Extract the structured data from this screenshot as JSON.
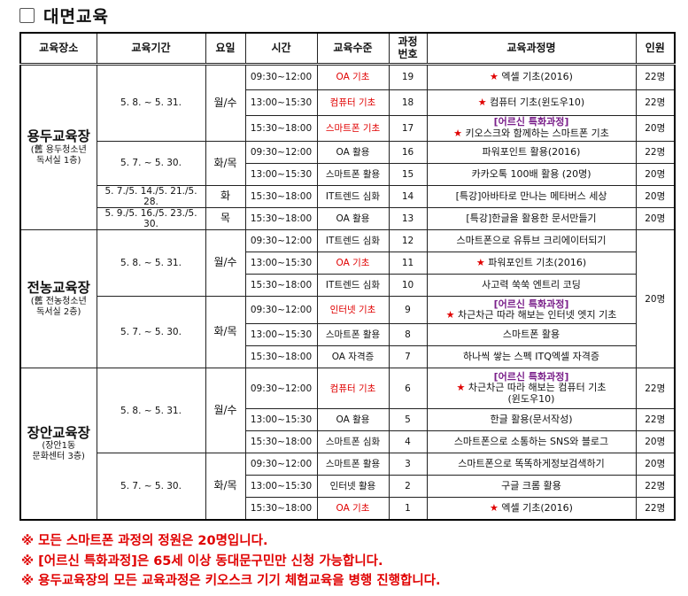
{
  "title": "대면교육",
  "headers": [
    "교육장소",
    "교육기간",
    "요일",
    "시간",
    "교육수준",
    "과정\n번호",
    "교육과정명",
    "인원"
  ],
  "colors": {
    "red": "#e00000",
    "special": "#7a1f8a"
  },
  "locations": [
    {
      "name": "용두교육장",
      "sub": "(舊 용두청소년\n독서실 1층)",
      "capacity_merged": null,
      "groups": [
        {
          "period": "5. 8. ~ 5. 31.",
          "day": "월/수",
          "rows": [
            {
              "time": "09:30~12:00",
              "level": "OA 기초",
              "red": true,
              "no": "19",
              "star": true,
              "special": null,
              "course": "엑셀 기초(2016)",
              "cap": "22명"
            },
            {
              "time": "13:00~15:30",
              "level": "컴퓨터 기초",
              "red": true,
              "no": "18",
              "star": true,
              "special": null,
              "course": "컴퓨터 기초(윈도우10)",
              "cap": "22명"
            },
            {
              "time": "15:30~18:00",
              "level": "스마트폰 기초",
              "red": true,
              "no": "17",
              "star": true,
              "special": "[어르신 특화과정]",
              "course": "키오스크와 함께하는 스마트폰 기초",
              "cap": "20명"
            }
          ]
        },
        {
          "period": "5. 7. ~ 5. 30.",
          "day": "화/목",
          "rows": [
            {
              "time": "09:30~12:00",
              "level": "OA 활용",
              "red": false,
              "no": "16",
              "star": false,
              "special": null,
              "course": "파워포인트 활용(2016)",
              "cap": "22명"
            },
            {
              "time": "13:00~15:30",
              "level": "스마트폰 활용",
              "red": false,
              "no": "15",
              "star": false,
              "special": null,
              "course": "카카오톡 100배 활용 (20명)",
              "cap": "20명"
            }
          ]
        },
        {
          "period": "5. 7./5. 14./5. 21./5. 28.",
          "day": "화",
          "rows": [
            {
              "time": "15:30~18:00",
              "level": "IT트렌드 심화",
              "red": false,
              "no": "14",
              "star": false,
              "special": null,
              "course": "[특강]아바타로 만나는 메타버스 세상",
              "cap": "20명"
            }
          ]
        },
        {
          "period": "5. 9./5. 16./5. 23./5. 30.",
          "day": "목",
          "rows": [
            {
              "time": "15:30~18:00",
              "level": "OA 활용",
              "red": false,
              "no": "13",
              "star": false,
              "special": null,
              "course": "[특강]한글을 활용한 문서만들기",
              "cap": "20명"
            }
          ]
        }
      ]
    },
    {
      "name": "전농교육장",
      "sub": "(舊 전농청소년\n독서실 2층)",
      "capacity_merged": "20명",
      "groups": [
        {
          "period": "5. 8. ~ 5. 31.",
          "day": "월/수",
          "rows": [
            {
              "time": "09:30~12:00",
              "level": "IT트렌드 심화",
              "red": false,
              "no": "12",
              "star": false,
              "special": null,
              "course": "스마트폰으로 유튜브 크리에이터되기"
            },
            {
              "time": "13:00~15:30",
              "level": "OA 기초",
              "red": true,
              "no": "11",
              "star": true,
              "special": null,
              "course": "파워포인트 기초(2016)"
            },
            {
              "time": "15:30~18:00",
              "level": "IT트렌드 심화",
              "red": false,
              "no": "10",
              "star": false,
              "special": null,
              "course": "사고력 쑥쑥 엔트리 코딩"
            }
          ]
        },
        {
          "period": "5. 7. ~ 5. 30.",
          "day": "화/목",
          "rows": [
            {
              "time": "09:30~12:00",
              "level": "인터넷 기초",
              "red": true,
              "no": "9",
              "star": true,
              "special": "[어르신 특화과정]",
              "course": "차근차근 따라 해보는 인터넷 엣지 기초"
            },
            {
              "time": "13:00~15:30",
              "level": "스마트폰 활용",
              "red": false,
              "no": "8",
              "star": false,
              "special": null,
              "course": "스마트폰 활용"
            },
            {
              "time": "15:30~18:00",
              "level": "OA 자격증",
              "red": false,
              "no": "7",
              "star": false,
              "special": null,
              "course": "하나씩 쌓는 스펙 ITQ엑셀 자격증"
            }
          ]
        }
      ]
    },
    {
      "name": "장안교육장",
      "sub": "(장안1동\n문화센터 3층)",
      "capacity_merged": null,
      "groups": [
        {
          "period": "5. 8. ~ 5. 31.",
          "day": "월/수",
          "rows": [
            {
              "time": "09:30~12:00",
              "level": "컴퓨터 기초",
              "red": true,
              "no": "6",
              "star": true,
              "special": "[어르신 특화과정]",
              "course": "차근차근 따라 해보는 컴퓨터 기초\n(윈도우10)",
              "cap": "22명"
            },
            {
              "time": "13:00~15:30",
              "level": "OA 활용",
              "red": false,
              "no": "5",
              "star": false,
              "special": null,
              "course": "한글 활용(문서작성)",
              "cap": "22명"
            },
            {
              "time": "15:30~18:00",
              "level": "스마트폰 심화",
              "red": false,
              "no": "4",
              "star": false,
              "special": null,
              "course": "스마트폰으로 소통하는 SNS와 블로그",
              "cap": "20명"
            }
          ]
        },
        {
          "period": "5. 7. ~ 5. 30.",
          "day": "화/목",
          "rows": [
            {
              "time": "09:30~12:00",
              "level": "스마트폰 활용",
              "red": false,
              "no": "3",
              "star": false,
              "special": null,
              "course": "스마트폰으로 똑똑하게정보검색하기",
              "cap": "20명"
            },
            {
              "time": "13:00~15:30",
              "level": "인터넷 활용",
              "red": false,
              "no": "2",
              "star": false,
              "special": null,
              "course": "구글 크롬 활용",
              "cap": "22명"
            },
            {
              "time": "15:30~18:00",
              "level": "OA 기초",
              "red": true,
              "no": "1",
              "star": true,
              "special": null,
              "course": "엑셀 기초(2016)",
              "cap": "22명"
            }
          ]
        }
      ]
    }
  ],
  "notes": [
    "※ 모든 스마트폰 과정의 정원은 20명입니다.",
    "※ [어르신 특화과정]은 65세 이상 동대문구민만 신청 가능합니다.",
    "※ 용두교육장의 모든 교육과정은 키오스크 기기 체험교육을 병행 진행합니다."
  ]
}
